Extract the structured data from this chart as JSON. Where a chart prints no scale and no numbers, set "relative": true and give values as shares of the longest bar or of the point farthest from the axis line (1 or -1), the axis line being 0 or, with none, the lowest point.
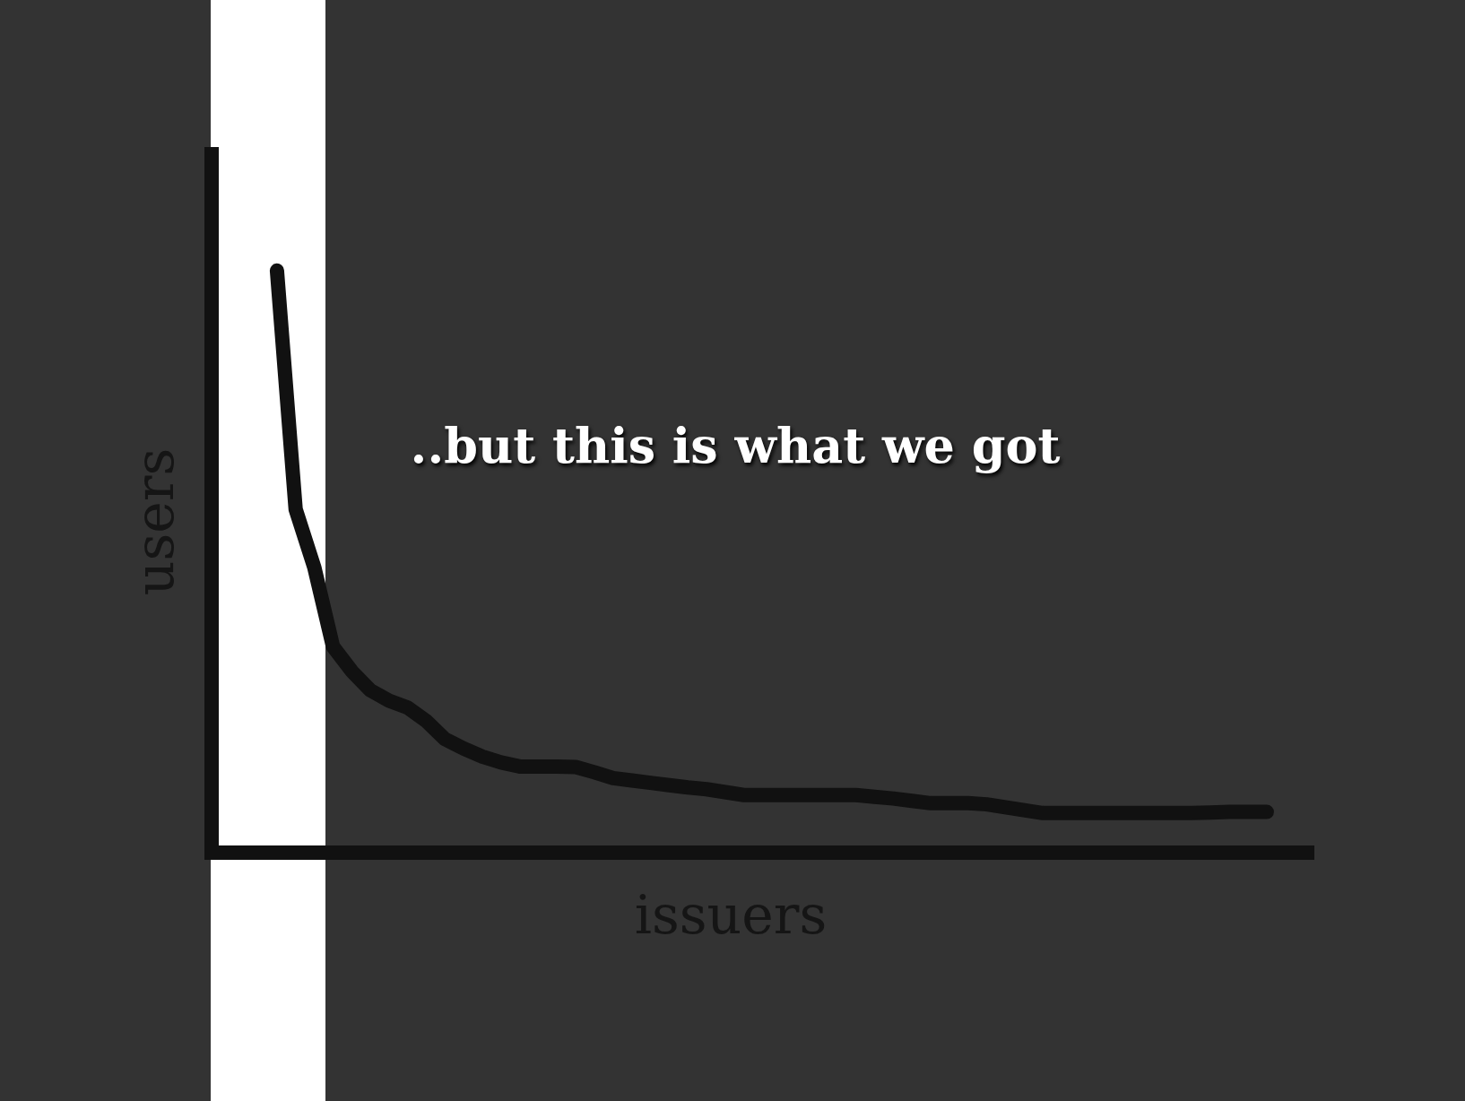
{
  "chart_data": {
    "type": "line",
    "title": "..but this is what we got",
    "xlabel": "issuers",
    "ylabel": "users",
    "relative": true,
    "marker": "none",
    "line_style": "solid",
    "categories": [
      null,
      null,
      null,
      null,
      null,
      null,
      null,
      null,
      null,
      null,
      null,
      null,
      null,
      null,
      null,
      null,
      null,
      null,
      null,
      null,
      null,
      null,
      null,
      null,
      null,
      null,
      null,
      null,
      null,
      null,
      null,
      null,
      null,
      null,
      null,
      null,
      null,
      null,
      null,
      null,
      null,
      null,
      null,
      null,
      null,
      null,
      null,
      null,
      null,
      null,
      null,
      null,
      null,
      null
    ],
    "series": [
      {
        "color": "#111111",
        "values": [
          1.0,
          0.59,
          0.49,
          0.354,
          0.312,
          0.279,
          0.261,
          0.249,
          0.226,
          0.195,
          0.179,
          0.165,
          0.155,
          0.148,
          0.148,
          0.148,
          0.147,
          0.138,
          0.128,
          0.124,
          0.12,
          0.116,
          0.112,
          0.109,
          0.104,
          0.099,
          0.099,
          0.099,
          0.099,
          0.099,
          0.099,
          0.099,
          0.096,
          0.093,
          0.089,
          0.085,
          0.085,
          0.085,
          0.083,
          0.078,
          0.073,
          0.068,
          0.068,
          0.068,
          0.068,
          0.068,
          0.068,
          0.068,
          0.068,
          0.068,
          0.069,
          0.07,
          0.07,
          0.07
        ]
      }
    ]
  }
}
